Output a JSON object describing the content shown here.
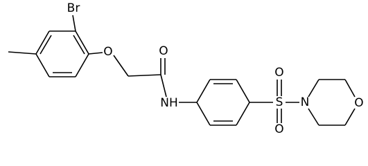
{
  "atoms": [
    "Br",
    "O",
    "O",
    "NH",
    "S",
    "O",
    "O",
    "N",
    "O"
  ]
}
